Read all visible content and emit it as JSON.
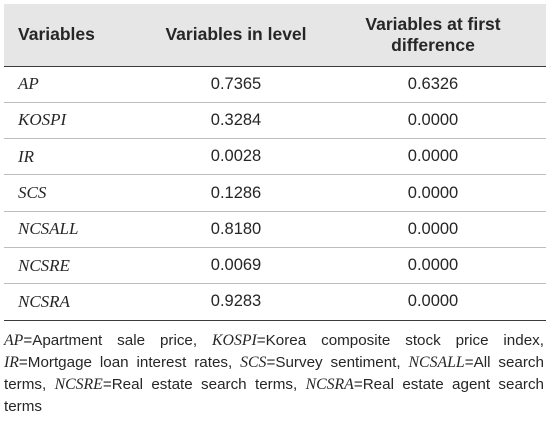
{
  "table": {
    "headers": [
      "Variables",
      "Variables in level",
      "Variables at first difference"
    ],
    "rows": [
      {
        "variable": "AP",
        "level": "0.7365",
        "first_difference": "0.6326"
      },
      {
        "variable": "KOSPI",
        "level": "0.3284",
        "first_difference": "0.0000"
      },
      {
        "variable": "IR",
        "level": "0.0028",
        "first_difference": "0.0000"
      },
      {
        "variable": "SCS",
        "level": "0.1286",
        "first_difference": "0.0000"
      },
      {
        "variable": "NCSALL",
        "level": "0.8180",
        "first_difference": "0.0000"
      },
      {
        "variable": "NCSRE",
        "level": "0.0069",
        "first_difference": "0.0000"
      },
      {
        "variable": "NCSRA",
        "level": "0.9283",
        "first_difference": "0.0000"
      }
    ]
  },
  "note": {
    "items": [
      {
        "abbr": "AP",
        "meaning": "Apartment sale price"
      },
      {
        "abbr": "KOSPI",
        "meaning": "Korea composite stock price index"
      },
      {
        "abbr": "IR",
        "meaning": "Mortgage loan interest rates"
      },
      {
        "abbr": "SCS",
        "meaning": "Survey sentiment"
      },
      {
        "abbr": "NCSALL",
        "meaning": "All search terms"
      },
      {
        "abbr": "NCSRE",
        "meaning": "Real estate search terms"
      },
      {
        "abbr": "NCSRA",
        "meaning": "Real estate agent search terms"
      }
    ]
  }
}
